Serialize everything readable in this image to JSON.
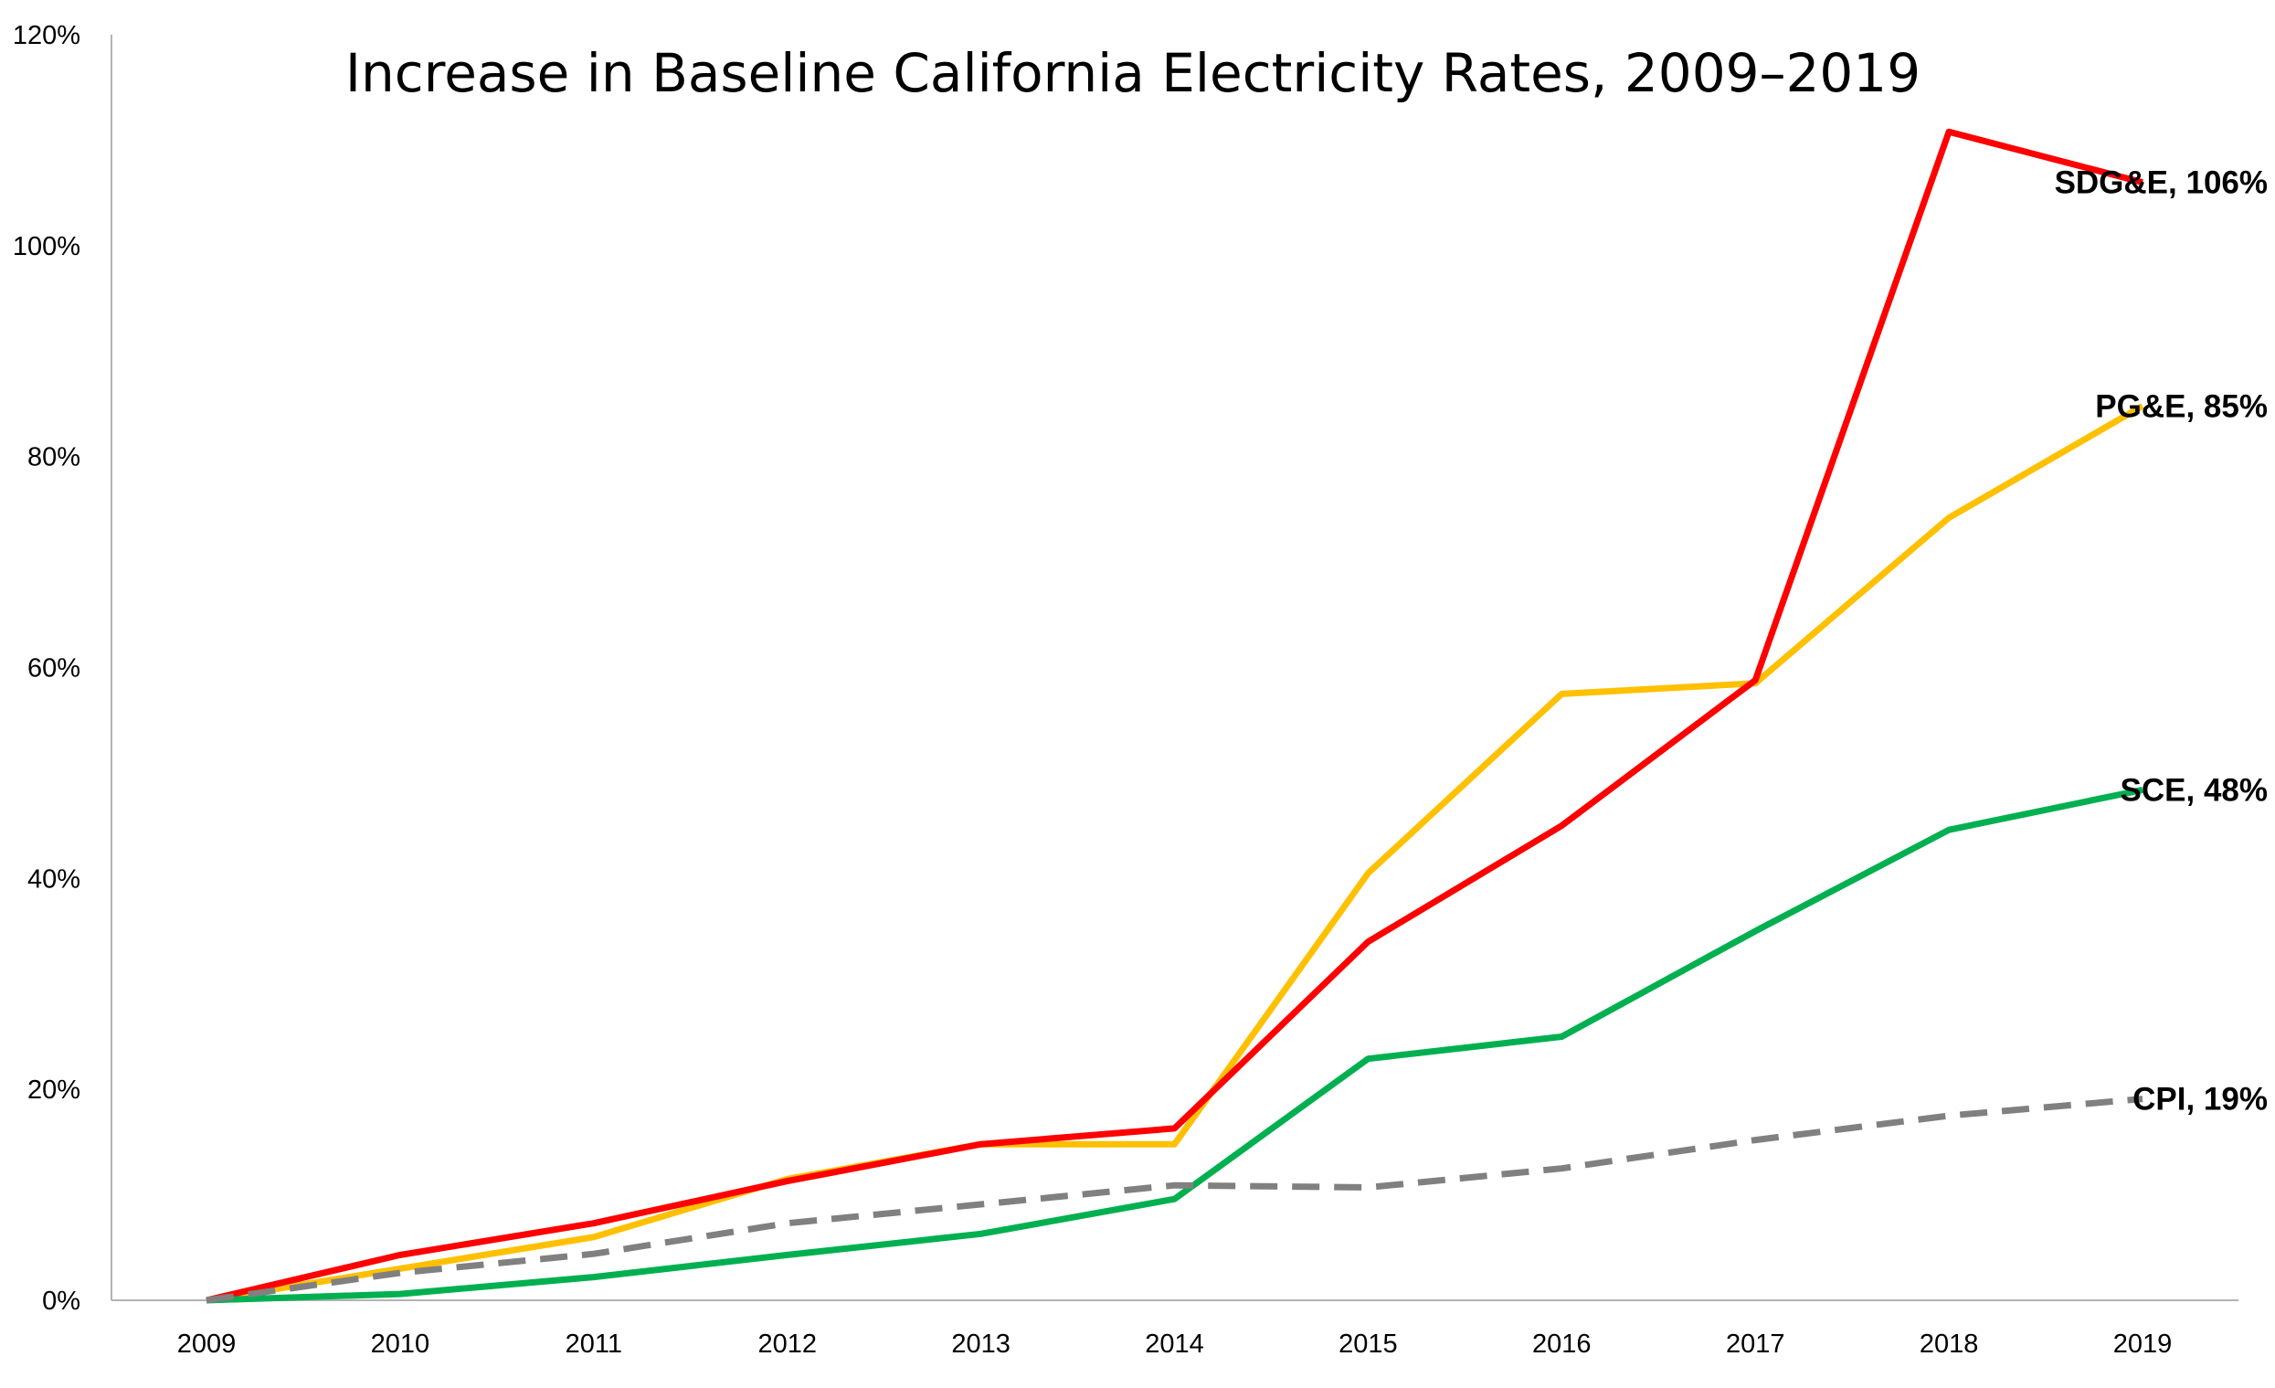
{
  "chart_data": {
    "type": "line",
    "title": "Increase in Baseline California Electricity Rates, 2009–2019",
    "xlabel": "",
    "ylabel": "",
    "x": [
      "2009",
      "2010",
      "2011",
      "2012",
      "2013",
      "2014",
      "2015",
      "2016",
      "2017",
      "2018",
      "2019"
    ],
    "ylim": [
      0,
      120
    ],
    "y_ticks": [
      0,
      20,
      40,
      60,
      80,
      100,
      120
    ],
    "y_tick_labels": [
      "0%",
      "20%",
      "40%",
      "60%",
      "80%",
      "100%",
      "120%"
    ],
    "grid": false,
    "legend": "none",
    "series": [
      {
        "name": "PG&E",
        "end_label": "PG&E, 85%",
        "color": "#FFC000",
        "dashed": false,
        "values": [
          0,
          3.0,
          6.0,
          11.5,
          14.8,
          14.8,
          40.5,
          57.5,
          58.5,
          74.2,
          84.8
        ]
      },
      {
        "name": "SDG&E",
        "end_label": "SDG&E, 106%",
        "color": "#FF0000",
        "dashed": false,
        "values": [
          0,
          4.3,
          7.3,
          11.3,
          14.8,
          16.3,
          34.0,
          45.0,
          58.8,
          110.8,
          106.0
        ]
      },
      {
        "name": "SCE",
        "end_label": "SCE, 48%",
        "color": "#00B050",
        "dashed": false,
        "values": [
          0,
          0.6,
          2.2,
          4.3,
          6.3,
          9.6,
          22.9,
          25.0,
          35.0,
          44.6,
          48.4
        ]
      },
      {
        "name": "CPI",
        "end_label": "CPI, 19%",
        "color": "#808080",
        "dashed": true,
        "values": [
          0,
          2.6,
          4.4,
          7.3,
          9.1,
          10.9,
          10.7,
          12.5,
          15.2,
          17.5,
          19.1
        ]
      }
    ]
  }
}
